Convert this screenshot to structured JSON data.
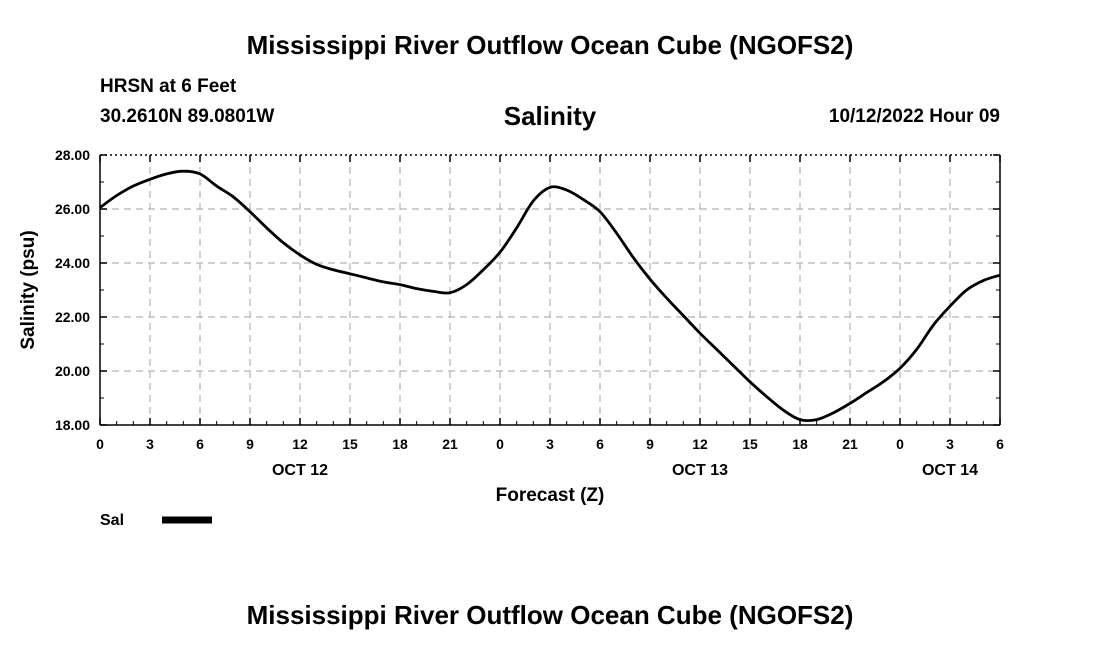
{
  "header": {
    "title": "Mississippi River Outflow Ocean Cube (NGOFS2)",
    "station": "HRSN at 6 Feet",
    "coords": "30.2610N  89.0801W",
    "subtitle": "Salinity",
    "datetime": "10/12/2022 Hour 09"
  },
  "footer": {
    "title": "Mississippi River Outflow Ocean Cube (NGOFS2)"
  },
  "chart_data": {
    "type": "line",
    "title": "Salinity",
    "xlabel": "Forecast (Z)",
    "ylabel": "Salinity (psu)",
    "xlim": [
      0,
      54
    ],
    "ylim": [
      18,
      28
    ],
    "yticks": [
      "18.00",
      "20.00",
      "22.00",
      "24.00",
      "26.00",
      "28.00"
    ],
    "ytick_values": [
      18,
      20,
      22,
      24,
      26,
      28
    ],
    "xtick_labels": [
      "0",
      "3",
      "6",
      "9",
      "12",
      "15",
      "18",
      "21",
      "0",
      "3",
      "6",
      "9",
      "12",
      "15",
      "18",
      "21",
      "0",
      "3",
      "6"
    ],
    "day_labels": [
      {
        "label": "OCT 12",
        "hour": 12
      },
      {
        "label": "OCT 13",
        "hour": 36
      },
      {
        "label": "OCT 14",
        "hour": 51
      }
    ],
    "grid": true,
    "legend": "bottom-left",
    "series": [
      {
        "name": "Sal",
        "x": [
          0,
          1,
          2,
          3,
          4,
          5,
          6,
          7,
          8,
          9,
          10,
          11,
          12,
          13,
          14,
          15,
          16,
          17,
          18,
          19,
          20,
          21,
          22,
          23,
          24,
          25,
          26,
          27,
          28,
          29,
          30,
          31,
          32,
          33,
          34,
          35,
          36,
          37,
          38,
          39,
          40,
          41,
          42,
          43,
          44,
          45,
          46,
          47,
          48,
          49,
          50,
          51,
          52,
          53,
          54
        ],
        "values": [
          26.05,
          26.5,
          26.85,
          27.1,
          27.3,
          27.4,
          27.3,
          26.85,
          26.45,
          25.9,
          25.3,
          24.75,
          24.3,
          23.95,
          23.75,
          23.6,
          23.45,
          23.3,
          23.2,
          23.05,
          22.95,
          22.9,
          23.2,
          23.75,
          24.4,
          25.3,
          26.3,
          26.8,
          26.7,
          26.35,
          25.9,
          25.1,
          24.2,
          23.4,
          22.7,
          22.05,
          21.4,
          20.8,
          20.2,
          19.6,
          19.05,
          18.55,
          18.2,
          18.2,
          18.45,
          18.8,
          19.2,
          19.6,
          20.1,
          20.8,
          21.7,
          22.4,
          23.0,
          23.35,
          23.55
        ]
      }
    ]
  }
}
